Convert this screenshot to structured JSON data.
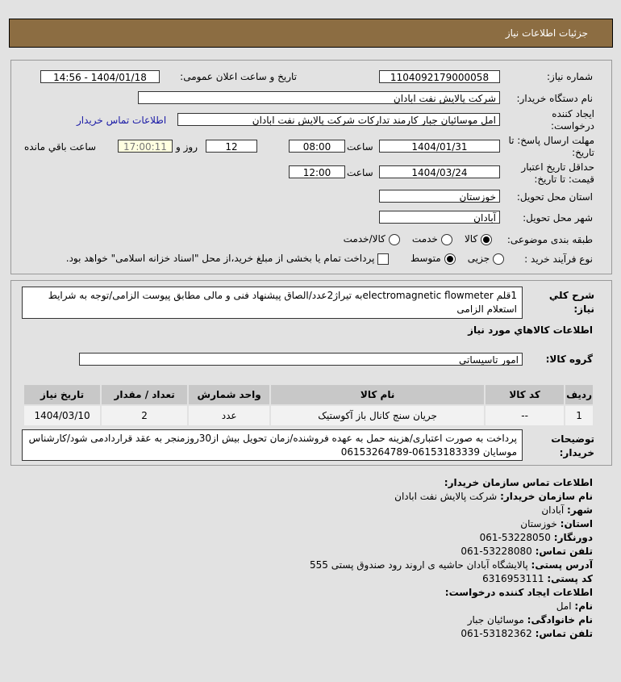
{
  "header": {
    "title": "جزئیات اطلاعات نیاز"
  },
  "form": {
    "need_number_label": "شماره نیاز:",
    "need_number": "1104092179000058",
    "announce_label": "تاریخ و ساعت اعلان عمومی:",
    "announce_value": "1404/01/18 - 14:56",
    "buyer_label": "نام دستگاه خریدار:",
    "buyer": "شرکت پالایش نفت ابادان",
    "creator_label": "ایجاد کننده درخواست:",
    "creator": "امل موسائیان جبار کارمند تدارکات شرکت پالایش نفت ابادان",
    "contact_link": "اطلاعات تماس خریدار",
    "deadline_label": "مهلت ارسال پاسخ: تا تاریخ:",
    "deadline_date": "1404/01/31",
    "time_label": "ساعت",
    "deadline_time": "08:00",
    "days": "12",
    "days_label": "روز و",
    "remaining": "17:00:11",
    "remaining_label": "ساعت باقي مانده",
    "validity_label": "حداقل تاریخ اعتبار قیمت: تا تاریخ:",
    "validity_date": "1404/03/24",
    "validity_time": "12:00",
    "province_label": "استان محل تحویل:",
    "province": "خوزستان",
    "city_label": "شهر محل تحویل:",
    "city": "آبادان",
    "category_label": "طبقه بندی موضوعی:",
    "category_options": [
      "کالا",
      "خدمت",
      "کالا/خدمت"
    ],
    "category_selected": "کالا",
    "process_label": "نوع فرآیند خرید :",
    "process_options": [
      "جزیی",
      "متوسط"
    ],
    "process_selected": "متوسط",
    "treasury_text": "پرداخت تمام یا بخشی از مبلغ خرید،از محل \"اسناد خزانه اسلامی\" خواهد بود."
  },
  "details": {
    "desc_label": "شرح کلي نياز:",
    "desc": "1قلم electromagnetic flowmeterبه تیراژ2عدد/الصاق پیشنهاد فنی و مالی مطابق پیوست الزامی/توجه به شرایط استعلام الزامی",
    "goods_title": "اطلاعات کالاهاي مورد نياز",
    "group_label": "گروه کالا:",
    "group": "امور تاسیساتی",
    "table": {
      "headers": [
        "ردیف",
        "کد کالا",
        "نام کالا",
        "واحد شمارش",
        "تعداد / مقدار",
        "تاریخ نیاز"
      ],
      "rows": [
        [
          "1",
          "--",
          "جریان سنج کانال باز آکوستیک",
          "عدد",
          "2",
          "1404/03/10"
        ]
      ]
    },
    "notes_label": "توضیحات خریدار:",
    "notes": "پرداخت به صورت اعتباری/هزینه حمل به عهده فروشنده/زمان تحویل بیش از30روزمنجر به عقد قراردادمی شود/کارشناس موسایان 06153183339-06153264789"
  },
  "contact": {
    "title": "اطلاعات تماس سازمان خریدار:",
    "rows": [
      {
        "k": "نام سازمان خریدار:",
        "v": "شرکت پالایش نفت ابادان"
      },
      {
        "k": "شهر:",
        "v": "آبادان"
      },
      {
        "k": "استان:",
        "v": "خوزستان"
      },
      {
        "k": "دورنگار:",
        "v": "53228050-061"
      },
      {
        "k": "تلفن تماس:",
        "v": "53228080-061"
      },
      {
        "k": "آدرس پستی:",
        "v": "پالایشگاه آبادان حاشیه ی اروند رود صندوق پستی 555"
      },
      {
        "k": "کد پستی:",
        "v": "6316953111"
      }
    ],
    "creator_title": "اطلاعات ایجاد کننده درخواست:",
    "creator_rows": [
      {
        "k": "نام:",
        "v": "امل"
      },
      {
        "k": "نام خانوادگی:",
        "v": "موسائیان جبار"
      },
      {
        "k": "تلفن تماس:",
        "v": "53182362-061"
      }
    ]
  },
  "colors": {
    "header_bg": "#8c6d42",
    "link": "#1a1aa6",
    "remaining_bg": "#ffffe0"
  }
}
